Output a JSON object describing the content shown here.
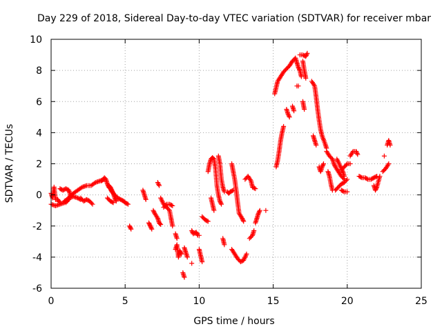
{
  "chart_data": {
    "type": "scatter",
    "title": "Day 229 of 2018, Sidereal Day-to-day VTEC variation (SDTVAR) for receiver mbar",
    "xlabel": "GPS time / hours",
    "ylabel": "SDTVAR / TECUs",
    "xlim": [
      0,
      25
    ],
    "ylim": [
      -6,
      10
    ],
    "xticks": [
      0,
      5,
      10,
      15,
      20,
      25
    ],
    "yticks": [
      -6,
      -4,
      -2,
      0,
      2,
      4,
      6,
      8,
      10
    ],
    "grid": true,
    "marker": "+",
    "color": "#ff0000",
    "segments": [
      [
        [
          0.0,
          0.1
        ],
        [
          0.1,
          -0.2
        ],
        [
          0.2,
          0.5
        ],
        [
          0.3,
          -0.3
        ],
        [
          0.45,
          -0.3
        ],
        [
          0.6,
          -0.5
        ]
      ],
      [
        [
          0.0,
          -0.6
        ],
        [
          0.3,
          -0.7
        ],
        [
          0.6,
          -0.6
        ],
        [
          0.9,
          -0.5
        ],
        [
          1.2,
          -0.2
        ],
        [
          1.5,
          0.1
        ],
        [
          1.8,
          0.3
        ],
        [
          2.1,
          0.5
        ],
        [
          2.4,
          0.6
        ],
        [
          2.7,
          0.6
        ],
        [
          3.0,
          0.8
        ],
        [
          3.3,
          0.9
        ],
        [
          3.6,
          1.0
        ]
      ],
      [
        [
          0.6,
          0.4
        ],
        [
          0.8,
          0.3
        ],
        [
          1.0,
          0.4
        ],
        [
          1.2,
          0.3
        ],
        [
          1.3,
          0.0
        ],
        [
          1.2,
          -0.3
        ],
        [
          1.0,
          -0.5
        ]
      ],
      [
        [
          0.9,
          -0.4
        ],
        [
          1.2,
          -0.2
        ],
        [
          1.5,
          -0.1
        ],
        [
          1.8,
          -0.2
        ],
        [
          2.0,
          -0.3
        ]
      ],
      [
        [
          2.0,
          -0.2
        ],
        [
          2.2,
          -0.4
        ],
        [
          2.4,
          -0.3
        ],
        [
          2.6,
          -0.4
        ],
        [
          2.8,
          -0.6
        ]
      ],
      [
        [
          3.4,
          0.9
        ],
        [
          3.6,
          1.1
        ],
        [
          3.7,
          1.0
        ],
        [
          3.8,
          0.7
        ],
        [
          3.9,
          0.5
        ],
        [
          4.0,
          0.4
        ],
        [
          4.1,
          0.2
        ],
        [
          4.3,
          0.0
        ],
        [
          4.5,
          -0.2
        ],
        [
          4.7,
          -0.3
        ],
        [
          4.9,
          -0.4
        ],
        [
          5.0,
          -0.5
        ],
        [
          5.2,
          -0.6
        ]
      ],
      [
        [
          3.9,
          0.6
        ],
        [
          4.0,
          0.5
        ],
        [
          4.1,
          0.3
        ],
        [
          4.2,
          0.1
        ],
        [
          4.3,
          -0.2
        ],
        [
          4.4,
          -0.4
        ]
      ],
      [
        [
          3.8,
          -0.2
        ],
        [
          4.0,
          -0.4
        ],
        [
          4.2,
          -0.5
        ]
      ],
      [
        [
          5.3,
          -2.0
        ],
        [
          5.4,
          -2.2
        ]
      ],
      [
        [
          6.2,
          0.3
        ],
        [
          6.3,
          0.0
        ],
        [
          6.4,
          -0.3
        ]
      ],
      [
        [
          6.6,
          -1.8
        ],
        [
          6.7,
          -2.0
        ],
        [
          6.8,
          -2.2
        ]
      ],
      [
        [
          6.9,
          -1.0
        ],
        [
          7.0,
          -1.2
        ],
        [
          7.2,
          -1.5
        ],
        [
          7.3,
          -1.8
        ],
        [
          7.4,
          -1.9
        ]
      ],
      [
        [
          7.2,
          0.8
        ],
        [
          7.3,
          0.6
        ]
      ],
      [
        [
          7.4,
          -0.2
        ],
        [
          7.6,
          -0.6
        ],
        [
          7.8,
          -0.8
        ],
        [
          8.0,
          -1.0
        ],
        [
          8.1,
          -1.5
        ],
        [
          8.2,
          -2.0
        ]
      ],
      [
        [
          7.6,
          -0.8
        ],
        [
          7.8,
          -0.6
        ],
        [
          8.0,
          -0.6
        ],
        [
          8.2,
          -0.7
        ]
      ],
      [
        [
          8.4,
          -2.5
        ],
        [
          8.5,
          -2.8
        ]
      ],
      [
        [
          8.4,
          -3.5
        ],
        [
          8.5,
          -3.2
        ],
        [
          8.6,
          -4.0
        ],
        [
          8.7,
          -3.6
        ],
        [
          8.8,
          -3.8
        ]
      ],
      [
        [
          9.0,
          -3.4
        ],
        [
          9.1,
          -3.7
        ],
        [
          9.2,
          -4.0
        ]
      ],
      [
        [
          8.9,
          -5.0
        ],
        [
          9.0,
          -5.3
        ]
      ],
      [
        [
          9.5,
          -2.3
        ],
        [
          9.6,
          -2.5
        ],
        [
          9.8,
          -2.4
        ],
        [
          9.9,
          -2.6
        ],
        [
          10.0,
          -2.6
        ]
      ],
      [
        [
          9.5,
          -4.4
        ]
      ],
      [
        [
          10.0,
          -3.5
        ],
        [
          10.1,
          -3.9
        ],
        [
          10.2,
          -4.3
        ]
      ],
      [
        [
          10.2,
          -1.4
        ],
        [
          10.4,
          -1.6
        ],
        [
          10.6,
          -1.7
        ]
      ],
      [
        [
          10.6,
          1.5
        ],
        [
          10.7,
          2.0
        ],
        [
          10.8,
          2.3
        ],
        [
          10.9,
          2.4
        ],
        [
          11.0,
          2.3
        ],
        [
          11.1,
          1.7
        ],
        [
          11.2,
          0.6
        ],
        [
          11.3,
          0.0
        ],
        [
          11.4,
          -0.4
        ],
        [
          11.5,
          -0.6
        ]
      ],
      [
        [
          10.8,
          -0.2
        ],
        [
          10.9,
          -0.6
        ],
        [
          11.0,
          -1.0
        ]
      ],
      [
        [
          11.3,
          2.5
        ],
        [
          11.4,
          2.0
        ],
        [
          11.5,
          1.0
        ],
        [
          11.6,
          0.5
        ],
        [
          11.7,
          0.2
        ]
      ],
      [
        [
          11.6,
          -2.8
        ],
        [
          11.7,
          -3.2
        ]
      ],
      [
        [
          12.2,
          2.0
        ],
        [
          12.3,
          1.5
        ],
        [
          12.4,
          1.0
        ],
        [
          12.5,
          0.3
        ],
        [
          12.6,
          -0.5
        ],
        [
          12.7,
          -1.2
        ],
        [
          12.9,
          -1.5
        ],
        [
          13.0,
          -1.7
        ]
      ],
      [
        [
          11.9,
          0.2
        ],
        [
          12.0,
          0.1
        ],
        [
          12.1,
          0.2
        ],
        [
          12.3,
          0.3
        ]
      ],
      [
        [
          12.2,
          -3.5
        ],
        [
          12.4,
          -3.8
        ],
        [
          12.6,
          -4.1
        ],
        [
          12.8,
          -4.3
        ],
        [
          13.0,
          -4.2
        ],
        [
          13.2,
          -3.8
        ]
      ],
      [
        [
          13.1,
          1.0
        ],
        [
          13.3,
          1.2
        ],
        [
          13.5,
          0.9
        ],
        [
          13.6,
          0.5
        ],
        [
          13.8,
          0.4
        ]
      ],
      [
        [
          13.4,
          -2.8
        ],
        [
          13.6,
          -2.6
        ],
        [
          13.7,
          -2.3
        ]
      ],
      [
        [
          13.8,
          -1.8
        ],
        [
          13.9,
          -1.5
        ],
        [
          14.0,
          -1.2
        ],
        [
          14.1,
          -1.0
        ]
      ],
      [
        [
          14.5,
          -1.0
        ]
      ],
      [
        [
          15.1,
          6.5
        ],
        [
          15.2,
          6.9
        ],
        [
          15.3,
          7.3
        ],
        [
          15.5,
          7.6
        ],
        [
          15.7,
          7.9
        ],
        [
          15.9,
          8.1
        ],
        [
          16.1,
          8.3
        ],
        [
          16.3,
          8.6
        ],
        [
          16.5,
          8.8
        ],
        [
          16.6,
          8.5
        ],
        [
          16.7,
          8.2
        ],
        [
          16.8,
          8.0
        ],
        [
          16.9,
          7.6
        ]
      ],
      [
        [
          15.2,
          1.8
        ],
        [
          15.3,
          2.2
        ],
        [
          15.4,
          2.8
        ],
        [
          15.5,
          3.5
        ],
        [
          15.6,
          4.0
        ],
        [
          15.7,
          4.4
        ]
      ],
      [
        [
          15.9,
          5.5
        ],
        [
          16.0,
          5.2
        ],
        [
          16.1,
          5.0
        ]
      ],
      [
        [
          16.3,
          5.7
        ],
        [
          16.4,
          5.4
        ]
      ],
      [
        [
          16.6,
          7.0
        ],
        [
          16.7,
          7.0
        ]
      ],
      [
        [
          16.8,
          9.0
        ],
        [
          17.0,
          9.0
        ],
        [
          17.2,
          8.9
        ],
        [
          17.3,
          9.1
        ]
      ],
      [
        [
          17.0,
          8.6
        ],
        [
          17.1,
          8.0
        ],
        [
          17.2,
          7.5
        ]
      ],
      [
        [
          17.0,
          6.0
        ],
        [
          17.1,
          5.5
        ]
      ],
      [
        [
          17.6,
          7.3
        ],
        [
          17.8,
          7.0
        ],
        [
          17.9,
          6.3
        ],
        [
          18.0,
          5.5
        ],
        [
          18.1,
          4.8
        ],
        [
          18.2,
          4.2
        ],
        [
          18.3,
          3.8
        ],
        [
          18.5,
          3.3
        ],
        [
          18.6,
          3.0
        ]
      ],
      [
        [
          17.7,
          3.8
        ],
        [
          17.8,
          3.5
        ],
        [
          17.9,
          3.2
        ]
      ],
      [
        [
          18.1,
          1.8
        ],
        [
          18.2,
          1.5
        ],
        [
          18.3,
          1.8
        ],
        [
          18.4,
          2.0
        ]
      ],
      [
        [
          18.6,
          2.8
        ],
        [
          18.8,
          2.5
        ],
        [
          19.0,
          2.3
        ],
        [
          19.1,
          2.0
        ],
        [
          19.2,
          1.8
        ],
        [
          19.4,
          1.5
        ],
        [
          19.6,
          1.2
        ],
        [
          19.8,
          1.0
        ]
      ],
      [
        [
          19.3,
          2.3
        ],
        [
          19.5,
          1.9
        ],
        [
          19.7,
          1.5
        ],
        [
          19.8,
          1.2
        ]
      ],
      [
        [
          18.7,
          1.5
        ],
        [
          18.8,
          1.2
        ],
        [
          18.9,
          0.7
        ],
        [
          19.0,
          0.3
        ]
      ],
      [
        [
          19.2,
          0.3
        ],
        [
          19.4,
          0.5
        ],
        [
          19.6,
          0.7
        ],
        [
          19.8,
          0.8
        ],
        [
          20.0,
          1.0
        ]
      ],
      [
        [
          19.6,
          1.6
        ],
        [
          19.8,
          1.8
        ],
        [
          20.0,
          2.0
        ],
        [
          20.2,
          2.0
        ]
      ],
      [
        [
          19.6,
          0.3
        ],
        [
          19.8,
          0.2
        ],
        [
          20.0,
          0.2
        ]
      ],
      [
        [
          20.2,
          2.5
        ],
        [
          20.4,
          2.8
        ],
        [
          20.6,
          2.8
        ],
        [
          20.7,
          2.6
        ]
      ],
      [
        [
          20.8,
          1.2
        ],
        [
          21.0,
          1.1
        ],
        [
          21.2,
          1.1
        ],
        [
          21.4,
          1.0
        ],
        [
          21.6,
          1.0
        ],
        [
          21.8,
          1.1
        ],
        [
          22.0,
          1.2
        ]
      ],
      [
        [
          21.8,
          0.6
        ],
        [
          21.9,
          0.3
        ],
        [
          22.0,
          0.5
        ],
        [
          22.2,
          1.2
        ]
      ],
      [
        [
          22.4,
          1.5
        ],
        [
          22.6,
          1.7
        ],
        [
          22.8,
          2.0
        ]
      ],
      [
        [
          22.5,
          2.5
        ]
      ],
      [
        [
          22.7,
          3.2
        ],
        [
          22.8,
          3.5
        ],
        [
          22.9,
          3.2
        ]
      ]
    ]
  }
}
